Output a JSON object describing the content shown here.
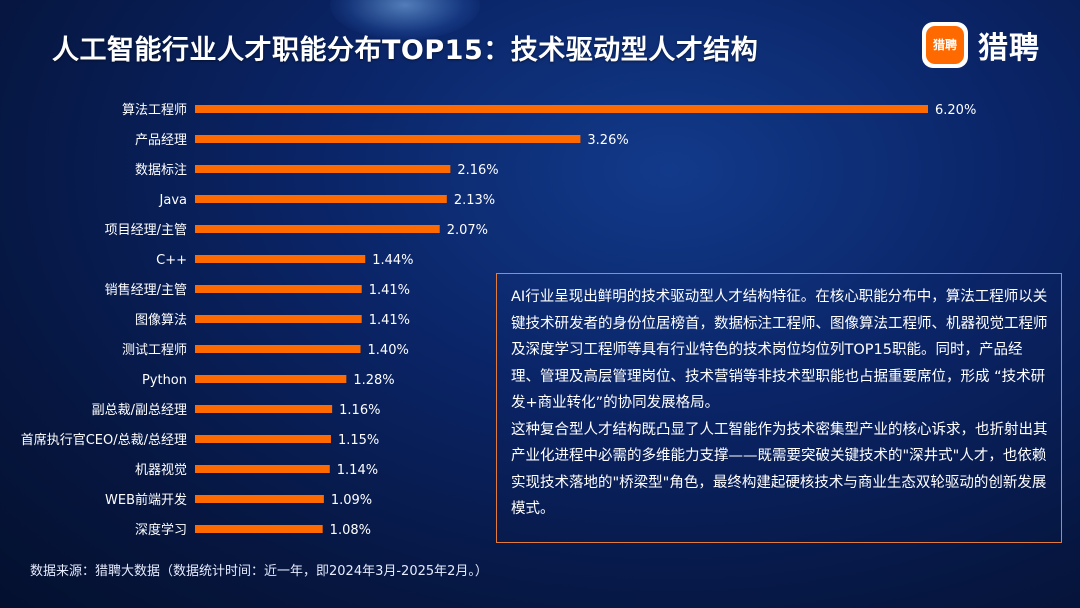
{
  "header": {
    "title": "人工智能行业人才职能分布TOP15：技术驱动型人才结构",
    "brand_logo_text": "猎聘",
    "brand_name": "猎聘"
  },
  "colors": {
    "bar": "#ff6a00",
    "label": "#ffffff",
    "accent_border": "#e57b3a"
  },
  "chart_data": {
    "type": "bar",
    "orientation": "horizontal",
    "title": "人工智能行业人才职能分布TOP15：技术驱动型人才结构",
    "categories": [
      "算法工程师",
      "产品经理",
      "数据标注",
      "Java",
      "项目经理/主管",
      "C++",
      "销售经理/主管",
      "图像算法",
      "测试工程师",
      "Python",
      "副总裁/副总经理",
      "首席执行官CEO/总裁/总经理",
      "机器视觉",
      "WEB前端开发",
      "深度学习"
    ],
    "values": [
      6.2,
      3.26,
      2.16,
      2.13,
      2.07,
      1.44,
      1.41,
      1.41,
      1.4,
      1.28,
      1.16,
      1.15,
      1.14,
      1.09,
      1.08
    ],
    "value_labels": [
      "6.20%",
      "3.26%",
      "2.16%",
      "2.13%",
      "2.07%",
      "1.44%",
      "1.41%",
      "1.41%",
      "1.40%",
      "1.28%",
      "1.16%",
      "1.15%",
      "1.14%",
      "1.09%",
      "1.08%"
    ],
    "unit": "%",
    "xlim": [
      0,
      6.2
    ],
    "grid": false,
    "legend": "none"
  },
  "description": {
    "paragraph1": "AI行业呈现出鲜明的技术驱动型人才结构特征。在核心职能分布中，算法工程师以关键技术研发者的身份位居榜首，数据标注工程师、图像算法工程师、机器视觉工程师及深度学习工程师等具有行业特色的技术岗位均位列TOP15职能。同时，产品经理、管理及高层管理岗位、技术营销等非技术型职能也占据重要席位，形成 “技术研发+商业转化”的协同发展格局。",
    "paragraph2": "这种复合型人才结构既凸显了人工智能作为技术密集型产业的核心诉求，也折射出其产业化进程中必需的多维能力支撑——既需要突破关键技术的\"深井式\"人才，也依赖实现技术落地的\"桥梁型\"角色，最终构建起硬核技术与商业生态双轮驱动的创新发展模式。"
  },
  "footer": {
    "source": "数据来源：猎聘大数据（数据统计时间：近一年，即2024年3月-2025年2月。）"
  }
}
